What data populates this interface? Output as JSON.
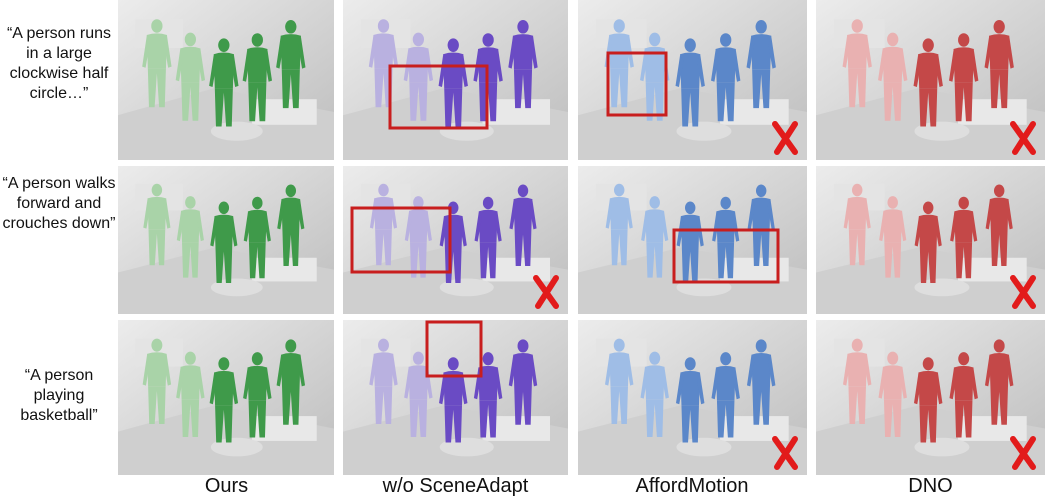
{
  "prompts": [
    "“A person runs in a large clockwise half circle…”",
    "“A person walks forward and crouches down”",
    "“A person playing basketball”"
  ],
  "columns": [
    "Ours",
    "w/o SceneAdapt",
    "AffordMotion",
    "DNO"
  ],
  "colors": {
    "ours": "#3f9a4a",
    "ours_light": "#a9d3a8",
    "wo_sceneadapt": "#6a4bc4",
    "wo_sceneadapt_light": "#b9b1e0",
    "affordmotion": "#5b87c9",
    "dno": "#c44848",
    "dno_light": "#e9b1b1",
    "highlight_box": "#c81e1e",
    "fail_mark": "#e21b1b",
    "scene": "#d7d7d7"
  },
  "fail_icon": "cross-mark-icon"
}
